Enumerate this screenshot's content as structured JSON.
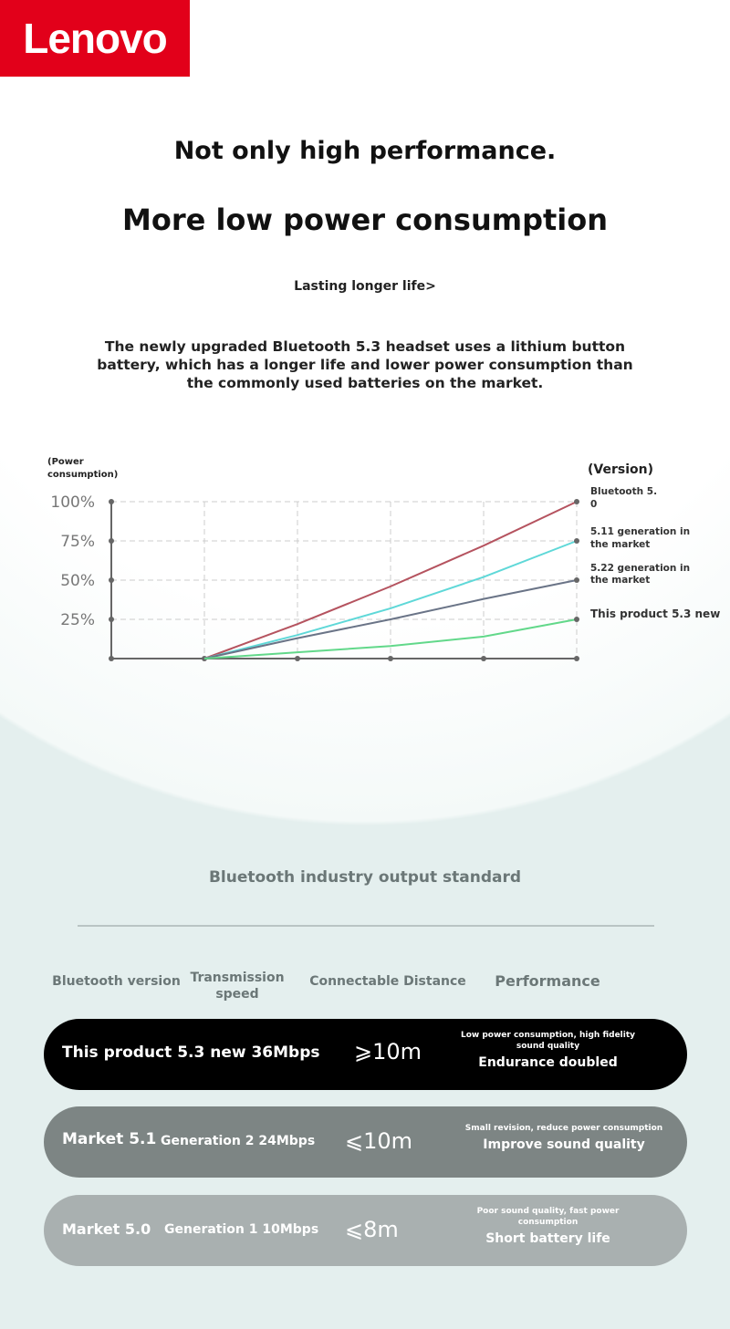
{
  "brand": "Lenovo",
  "headline1": "Not only high performance.",
  "headline2": "More low power consumption",
  "subheadline": "Lasting longer life>",
  "description": "The newly upgraded Bluetooth 5.3 headset uses a lithium button battery, which has a longer life and lower power consumption than the commonly used batteries on the market.",
  "chart_data": {
    "type": "line",
    "ylabel": "(Power consumption)",
    "legend_title": "(Version)",
    "yticks": [
      "100%",
      "75%",
      "50%",
      "25%"
    ],
    "ylim": [
      0,
      100
    ],
    "x": [
      0,
      1,
      2,
      3,
      4,
      5
    ],
    "grid": true,
    "legend_placement": "right",
    "series": [
      {
        "name": "Bluetooth 5. 0",
        "color": "#b5535f",
        "values": [
          null,
          0,
          22,
          46,
          72,
          100
        ]
      },
      {
        "name": "5.11 generation in the market",
        "color": "#5fd8d8",
        "values": [
          null,
          0,
          15,
          32,
          52,
          75
        ]
      },
      {
        "name": "5.22 generation in the market",
        "color": "#6a7487",
        "values": [
          null,
          0,
          13,
          25,
          38,
          50
        ]
      },
      {
        "name": "This product 5.3 new",
        "color": "#62d88a",
        "values": [
          null,
          0,
          4,
          8,
          14,
          25
        ]
      }
    ]
  },
  "table": {
    "title": "Bluetooth industry output standard",
    "headers": [
      "Bluetooth version",
      "Transmission speed",
      "Connectable Distance",
      "Performance"
    ],
    "rows": [
      {
        "version": "This product 5.3 new 36Mbps",
        "speed": "",
        "distance": "⩾10m",
        "note": "Low power consumption, high fidelity sound quality",
        "perf": "Endurance doubled",
        "bg": "#000000"
      },
      {
        "version": "Market 5.1",
        "speed": "Generation 2 24Mbps",
        "distance": "⩽10m",
        "note": "Small revision, reduce power consumption",
        "perf": "Improve sound quality",
        "bg": "#7d8584"
      },
      {
        "version": "Market 5.0",
        "speed": "Generation 1 10Mbps",
        "distance": "⩽8m",
        "note": "Poor sound quality, fast power consumption",
        "perf": "Short battery life",
        "bg": "#a9b0b0"
      }
    ]
  }
}
